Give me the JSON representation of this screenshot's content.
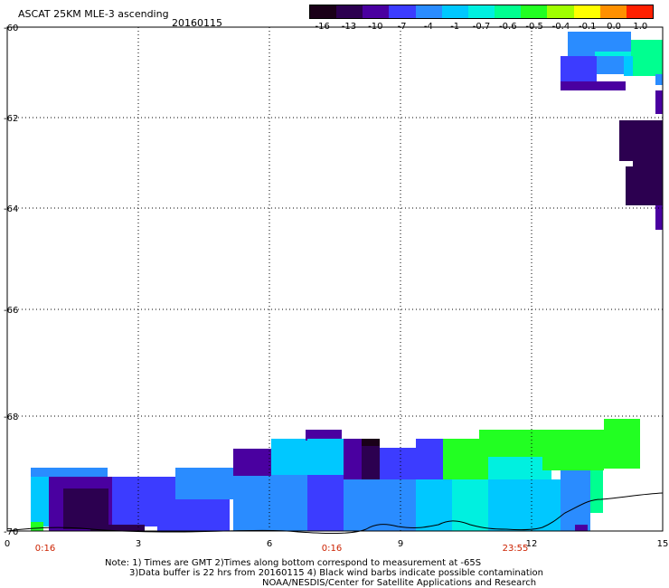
{
  "header": {
    "title": "ASCAT 25KM MLE-3 ascending",
    "date": "20160115"
  },
  "colorbar": {
    "labels": [
      "-16",
      "-13",
      "-10",
      "-7",
      "-4",
      "-1",
      "-0.7",
      "-0.6",
      "-0.5",
      "-0.4",
      "-0.1",
      "0.0",
      "1.0"
    ],
    "colors": [
      "#1a0018",
      "#2c0050",
      "#4a00a0",
      "#3c3cff",
      "#2a8cff",
      "#00c8ff",
      "#00f0e0",
      "#00ff90",
      "#22ff22",
      "#a0ff00",
      "#ffff00",
      "#ff9000",
      "#ff2000"
    ]
  },
  "axes": {
    "y_ticks": [
      "-60",
      "-62",
      "-64",
      "-66",
      "-68",
      "-70"
    ],
    "x_ticks": [
      "0",
      "3",
      "6",
      "9",
      "12",
      "15"
    ],
    "time_labels": [
      "0:16",
      "0:16",
      "23:55"
    ],
    "time_color": "#cc2200"
  },
  "notes": {
    "line1": "Note: 1) Times are GMT 2)Times along bottom correspond to measurement at -65S",
    "line2": "3)Data buffer is 22 hrs from 20160115 4) Black wind barbs indicate possible contamination",
    "line3": "NOAA/NESDIS/Center for Satellite Applications and Research"
  }
}
